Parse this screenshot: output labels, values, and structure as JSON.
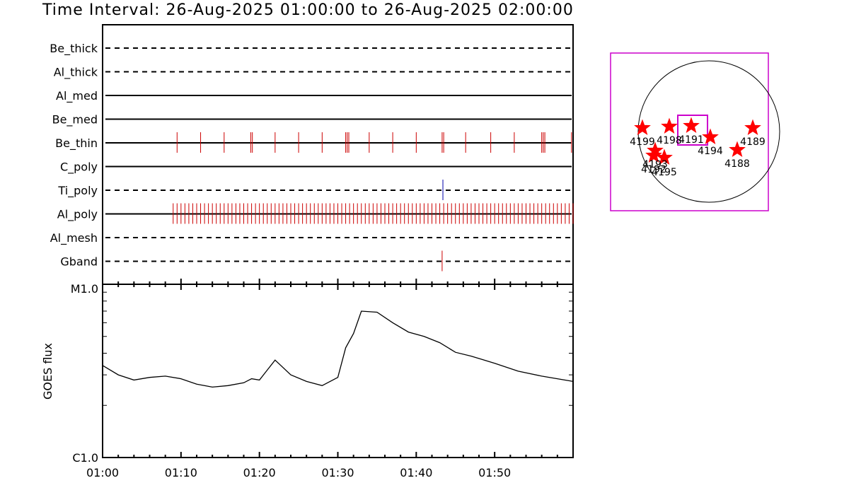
{
  "title": "Time Interval: 26-Aug-2025 01:00:00 to 26-Aug-2025 02:00:00",
  "chart_data": [
    {
      "type": "event-timeline",
      "xlim": [
        0,
        60
      ],
      "x_tick_labels": [
        "01:00",
        "01:10",
        "01:20",
        "01:30",
        "01:40",
        "01:50"
      ],
      "channels": [
        {
          "name": "Be_thick",
          "style": "dashed",
          "events": []
        },
        {
          "name": "Al_thick",
          "style": "dashed",
          "events": []
        },
        {
          "name": "Al_med",
          "style": "solid",
          "events": []
        },
        {
          "name": "Be_med",
          "style": "solid",
          "events": []
        },
        {
          "name": "Be_thin",
          "style": "solid",
          "event_color": "#cc0000",
          "events": [
            9.5,
            12.5,
            15.5,
            18.9,
            19.1,
            22.0,
            25.0,
            28.0,
            31.0,
            31.2,
            31.4,
            34.0,
            37.0,
            40.0,
            43.3,
            43.5,
            46.3,
            49.5,
            52.5,
            56.0,
            56.2,
            56.4,
            59.8
          ]
        },
        {
          "name": "C_poly",
          "style": "solid",
          "events": []
        },
        {
          "name": "Ti_poly",
          "style": "dashed",
          "event_color": "#0000aa",
          "events": [
            43.4
          ]
        },
        {
          "name": "Al_poly",
          "style": "solid",
          "event_color": "#cc0000",
          "events_dense": [
            9.0,
            60.0
          ],
          "events_step": 0.5
        },
        {
          "name": "Al_mesh",
          "style": "dashed",
          "events": []
        },
        {
          "name": "Gband",
          "style": "dashed",
          "event_color": "#cc0000",
          "events": [
            43.3
          ]
        }
      ]
    },
    {
      "type": "line",
      "ylabel": "GOES flux",
      "y_scale": "log",
      "y_tick_labels": [
        "C1.0",
        "M1.0"
      ],
      "ylim": [
        1e-06,
        1e-05
      ],
      "xlim": [
        0,
        60
      ],
      "x_tick_labels": [
        "01:00",
        "01:10",
        "01:20",
        "01:30",
        "01:40",
        "01:50"
      ],
      "x": [
        0,
        2,
        4,
        6,
        8,
        10,
        12,
        14,
        16,
        18,
        19,
        20,
        22,
        24,
        26,
        28,
        30,
        31,
        32,
        33,
        35,
        37,
        39,
        41,
        43,
        45,
        47,
        50,
        53,
        56,
        60
      ],
      "y": [
        3.4e-06,
        3e-06,
        2.8e-06,
        2.9e-06,
        2.95e-06,
        2.85e-06,
        2.65e-06,
        2.55e-06,
        2.6e-06,
        2.7e-06,
        2.85e-06,
        2.8e-06,
        3.65e-06,
        3e-06,
        2.75e-06,
        2.6e-06,
        2.9e-06,
        4.3e-06,
        5.2e-06,
        7e-06,
        6.9e-06,
        6e-06,
        5.3e-06,
        5e-06,
        4.6e-06,
        4.05e-06,
        3.85e-06,
        3.5e-06,
        3.15e-06,
        2.95e-06,
        2.75e-06
      ]
    },
    {
      "type": "map",
      "regions": [
        {
          "id": "4199",
          "label": "4199"
        },
        {
          "id": "4198",
          "label": "4198"
        },
        {
          "id": "4191",
          "label": "4191"
        },
        {
          "id": "4194",
          "label": "4194"
        },
        {
          "id": "4189",
          "label": "4189"
        },
        {
          "id": "4188",
          "label": "4188"
        },
        {
          "id": "4193",
          "label": "4193"
        },
        {
          "id": "4192",
          "label": "4192"
        },
        {
          "id": "4195",
          "label": "4195"
        }
      ]
    }
  ]
}
